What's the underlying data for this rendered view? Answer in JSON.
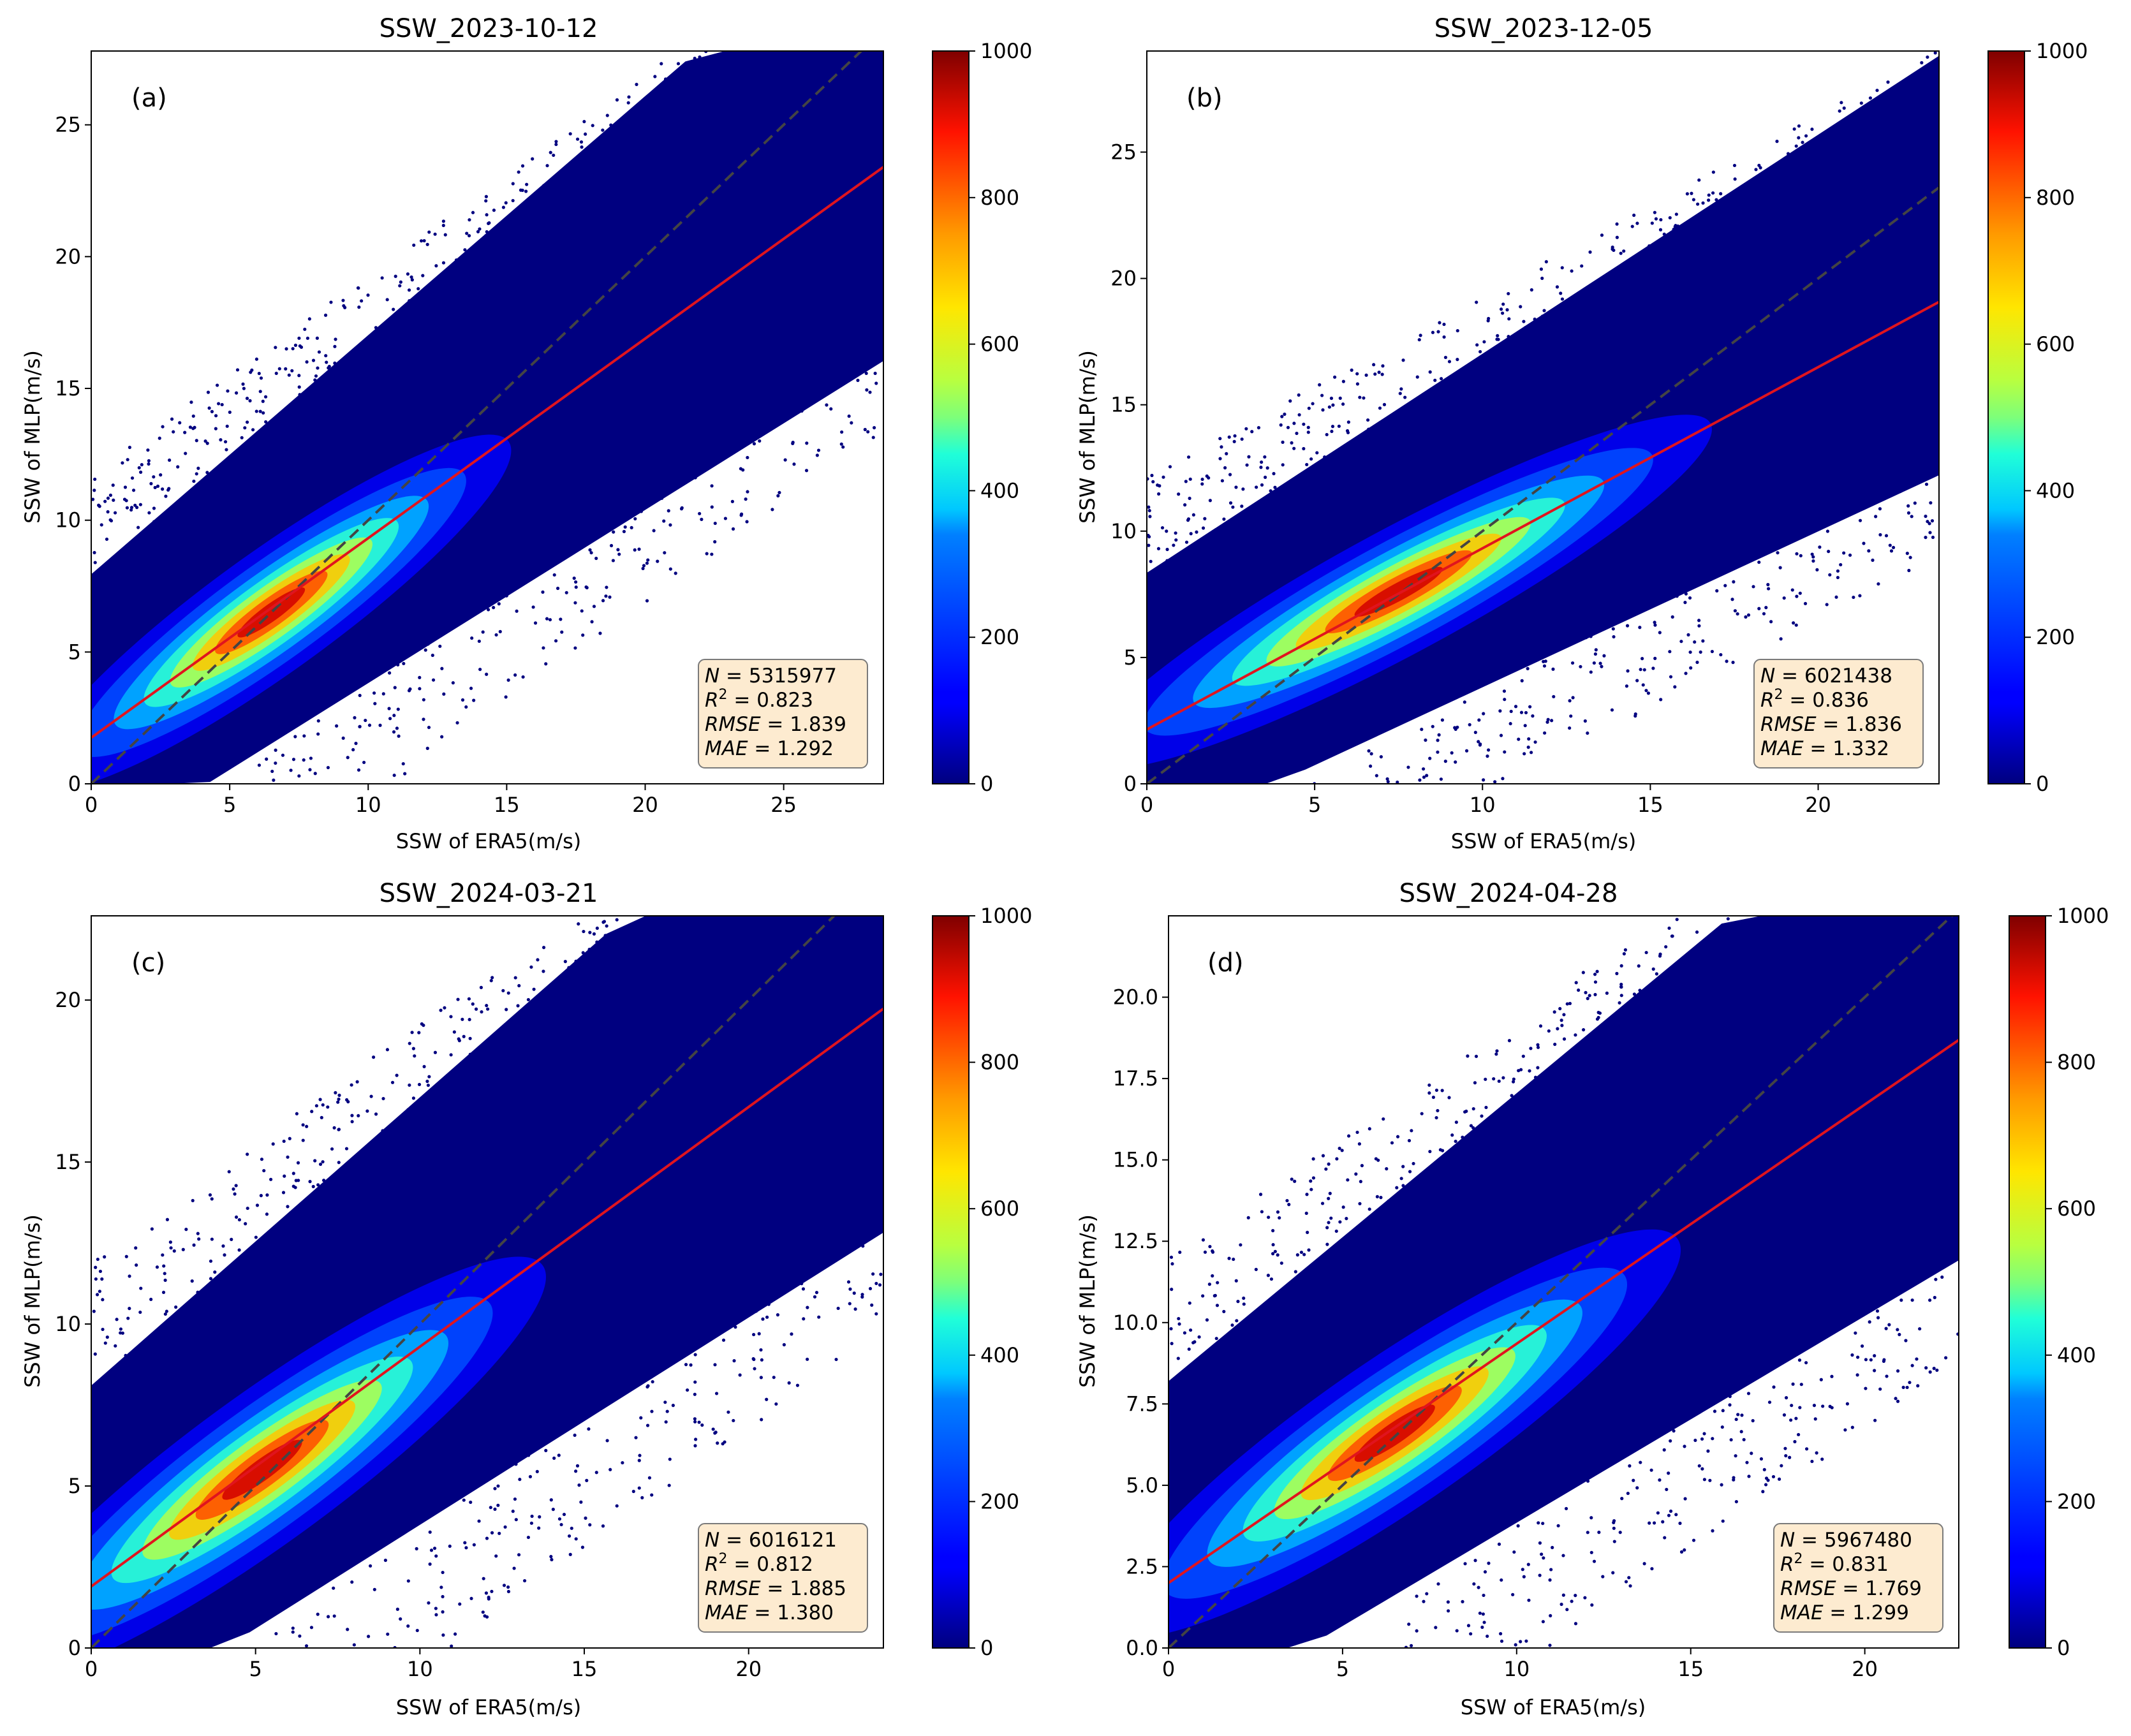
{
  "figure": {
    "colormap": "jet",
    "background": "#ffffff",
    "accent_fit_line": "#e0141e",
    "one_to_one_line": "#444444",
    "stats_box_fill": "#fdebd0",
    "stats_box_edge": "#7a7a7a",
    "point_color": "#000080"
  },
  "chart_data": [
    {
      "type": "scatter",
      "title": "SSW_2023-10-12",
      "panel": "(a)",
      "xlabel": "SSW of ERA5(m/s)",
      "ylabel": "SSW of MLP(m/s)",
      "xlim": [
        0,
        28.6
      ],
      "ylim": [
        0,
        27.8
      ],
      "xticks": [
        0,
        5,
        10,
        15,
        20,
        25
      ],
      "yticks": [
        0,
        5,
        10,
        15,
        20,
        25
      ],
      "xtick_labels": [
        "0",
        "5",
        "10",
        "15",
        "20",
        "25"
      ],
      "ytick_labels": [
        "0",
        "5",
        "10",
        "15",
        "20",
        "25"
      ],
      "fit_line": {
        "intercept": 1.75,
        "slope": 0.757
      },
      "one_to_one": true,
      "density": {
        "center": [
          6.5,
          6.5
        ],
        "spread": [
          3.0,
          1.3
        ]
      },
      "colorbar": {
        "min": 0,
        "max": 1000,
        "ticks": [
          0,
          200,
          400,
          600,
          800,
          1000
        ],
        "tick_labels": [
          "0",
          "200",
          "400",
          "600",
          "800",
          "1000"
        ]
      },
      "stats": {
        "N": "5315977",
        "R2": "0.823",
        "RMSE": "1.839",
        "MAE": "1.292"
      },
      "stats_labels": {
        "N": "N",
        "R": "R",
        "sq": "2",
        "RMSE": "RMSE",
        "MAE": "MAE",
        "eq": " = "
      }
    },
    {
      "type": "scatter",
      "title": "SSW_2023-12-05",
      "panel": "(b)",
      "xlabel": "SSW of ERA5(m/s)",
      "ylabel": "SSW of MLP(m/s)",
      "xlim": [
        0,
        23.6
      ],
      "ylim": [
        0,
        29.0
      ],
      "xticks": [
        0,
        5,
        10,
        15,
        20
      ],
      "yticks": [
        0,
        5,
        10,
        15,
        20,
        25
      ],
      "xtick_labels": [
        "0",
        "5",
        "10",
        "15",
        "20"
      ],
      "ytick_labels": [
        "0",
        "5",
        "10",
        "15",
        "20",
        "25"
      ],
      "fit_line": {
        "intercept": 2.15,
        "slope": 0.717
      },
      "one_to_one": true,
      "density": {
        "center": [
          7.5,
          7.6
        ],
        "spread": [
          3.0,
          1.4
        ]
      },
      "colorbar": {
        "min": 0,
        "max": 1000,
        "ticks": [
          0,
          200,
          400,
          600,
          800,
          1000
        ],
        "tick_labels": [
          "0",
          "200",
          "400",
          "600",
          "800",
          "1000"
        ]
      },
      "stats": {
        "N": "6021438",
        "R2": "0.836",
        "RMSE": "1.836",
        "MAE": "1.332"
      },
      "stats_labels": {
        "N": "N",
        "R": "R",
        "sq": "2",
        "RMSE": "RMSE",
        "MAE": "MAE",
        "eq": " = "
      }
    },
    {
      "type": "scatter",
      "title": "SSW_2024-03-21",
      "panel": "(c)",
      "xlabel": "SSW of ERA5(m/s)",
      "ylabel": "SSW of MLP(m/s)",
      "xlim": [
        0,
        24.1
      ],
      "ylim": [
        0,
        22.6
      ],
      "xticks": [
        0,
        5,
        10,
        15,
        20
      ],
      "yticks": [
        0,
        5,
        10,
        15,
        20
      ],
      "xtick_labels": [
        "0",
        "5",
        "10",
        "15",
        "20"
      ],
      "ytick_labels": [
        "0",
        "5",
        "10",
        "15",
        "20"
      ],
      "fit_line": {
        "intercept": 1.9,
        "slope": 0.74
      },
      "one_to_one": true,
      "density": {
        "center": [
          5.2,
          5.5
        ],
        "spread": [
          3.0,
          1.3
        ]
      },
      "colorbar": {
        "min": 0,
        "max": 1000,
        "ticks": [
          0,
          200,
          400,
          600,
          800,
          1000
        ],
        "tick_labels": [
          "0",
          "200",
          "400",
          "600",
          "800",
          "1000"
        ]
      },
      "stats": {
        "N": "6016121",
        "R2": "0.812",
        "RMSE": "1.885",
        "MAE": "1.380"
      },
      "stats_labels": {
        "N": "N",
        "R": "R",
        "sq": "2",
        "RMSE": "RMSE",
        "MAE": "MAE",
        "eq": " = "
      }
    },
    {
      "type": "scatter",
      "title": "SSW_2024-04-28",
      "panel": "(d)",
      "xlabel": "SSW of ERA5(m/s)",
      "ylabel": "SSW of MLP(m/s)",
      "xlim": [
        0,
        22.7
      ],
      "ylim": [
        0,
        22.5
      ],
      "xticks": [
        0,
        5,
        10,
        15,
        20
      ],
      "yticks": [
        0,
        2.5,
        5,
        7.5,
        10,
        12.5,
        15,
        17.5,
        20
      ],
      "xtick_labels": [
        "0",
        "5",
        "10",
        "15",
        "20"
      ],
      "ytick_labels": [
        "0.0",
        "2.5",
        "5.0",
        "7.5",
        "10.0",
        "12.5",
        "15.0",
        "17.5",
        "20.0"
      ],
      "fit_line": {
        "intercept": 2.0,
        "slope": 0.735
      },
      "one_to_one": true,
      "density": {
        "center": [
          6.5,
          6.6
        ],
        "spread": [
          2.8,
          1.3
        ]
      },
      "colorbar": {
        "min": 0,
        "max": 1000,
        "ticks": [
          0,
          200,
          400,
          600,
          800,
          1000
        ],
        "tick_labels": [
          "0",
          "200",
          "400",
          "600",
          "800",
          "1000"
        ]
      },
      "stats": {
        "N": "5967480",
        "R2": "0.831",
        "RMSE": "1.769",
        "MAE": "1.299"
      },
      "stats_labels": {
        "N": "N",
        "R": "R",
        "sq": "2",
        "RMSE": "RMSE",
        "MAE": "MAE",
        "eq": " = "
      }
    }
  ]
}
